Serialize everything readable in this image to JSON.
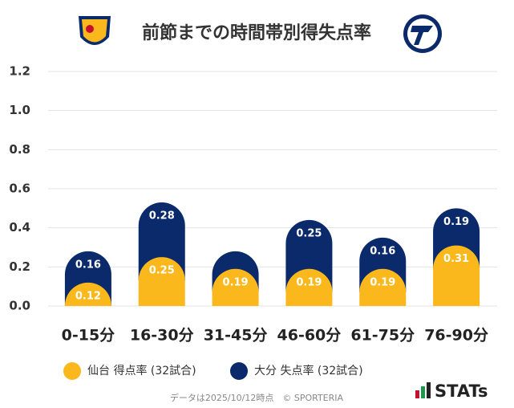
{
  "chart_data": {
    "type": "bar",
    "stacked": true,
    "title": "前節までの時間帯別得失点率",
    "categories": [
      "0-15分",
      "16-30分",
      "31-45分",
      "46-60分",
      "61-75分",
      "76-90分"
    ],
    "series": [
      {
        "name": "仙台 得点率 (32試合)",
        "color": "#fbb81c",
        "values": [
          0.12,
          0.25,
          0.19,
          0.19,
          0.19,
          0.31
        ]
      },
      {
        "name": "大分 失点率 (32試合)",
        "color": "#0a2a6b",
        "values": [
          0.16,
          0.28,
          0.09,
          0.25,
          0.16,
          0.19
        ]
      }
    ],
    "ylim": [
      0,
      1.2
    ],
    "yticks": [
      {
        "value": 0,
        "label": "0.0"
      },
      0.2,
      0.4,
      0.6,
      0.8,
      {
        "value": 1,
        "label": "1.0"
      },
      1.2
    ],
    "grid": true,
    "legend": "bottom",
    "annotations": [
      "データは2025/10/12時点　© SPORTERIA",
      "STATs"
    ]
  }
}
